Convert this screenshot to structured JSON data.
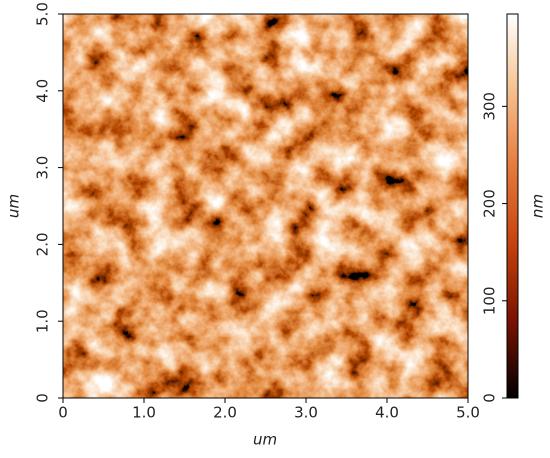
{
  "chart_data": {
    "type": "heatmap",
    "xlabel": "um",
    "ylabel": "um",
    "colorbar_label": "nm",
    "xlim": [
      0,
      5
    ],
    "ylim": [
      0,
      5
    ],
    "clim": [
      0,
      395
    ],
    "xticks": [
      0,
      {
        "value": 1,
        "label": "1.0"
      },
      {
        "value": 2,
        "label": "2.0"
      },
      {
        "value": 3,
        "label": "3.0"
      },
      {
        "value": 4,
        "label": "4.0"
      },
      {
        "value": 5,
        "label": "5.0"
      }
    ],
    "yticks": [
      0,
      {
        "value": 1,
        "label": "1.0"
      },
      {
        "value": 2,
        "label": "2.0"
      },
      {
        "value": 3,
        "label": "3.0"
      },
      {
        "value": 4,
        "label": "4.0"
      },
      {
        "value": 5,
        "label": "5.0"
      }
    ],
    "cticks": [
      0,
      100,
      200,
      300
    ],
    "colormap": [
      "#000000",
      "#7a1200",
      "#c4420e",
      "#e57a3a",
      "#f6c08e",
      "#ffffff"
    ]
  }
}
